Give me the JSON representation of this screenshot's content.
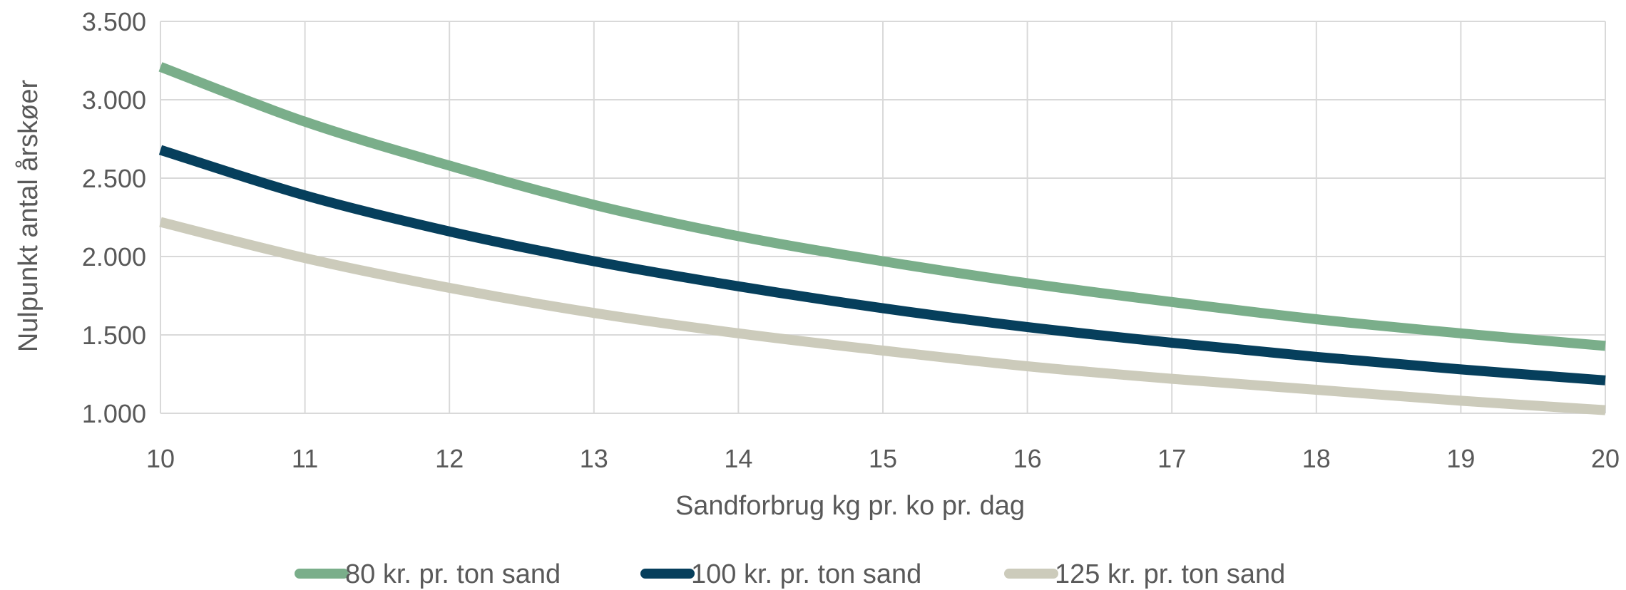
{
  "chart_data": {
    "type": "line",
    "title": "",
    "xlabel": "Sandforbrug kg pr. ko pr. dag",
    "ylabel": "Nulpunkt antal årskøer",
    "xlim": [
      10,
      20
    ],
    "ylim": [
      1000,
      3500
    ],
    "x_ticks": [
      "10",
      "11",
      "12",
      "13",
      "14",
      "15",
      "16",
      "17",
      "18",
      "19",
      "20"
    ],
    "y_ticks": [
      "1.000",
      "1.500",
      "2.000",
      "2.500",
      "3.000",
      "3.500"
    ],
    "grid": true,
    "legend_position": "bottom",
    "x": [
      10,
      11,
      12,
      13,
      14,
      15,
      16,
      17,
      18,
      19,
      20
    ],
    "series": [
      {
        "name": "80 kr. pr. ton sand",
        "color": "#7aae8a",
        "values": [
          3210,
          2860,
          2580,
          2330,
          2130,
          1970,
          1830,
          1710,
          1600,
          1510,
          1430
        ]
      },
      {
        "name": "100 kr. pr. ton sand",
        "color": "#063f5c",
        "values": [
          2680,
          2390,
          2160,
          1970,
          1810,
          1670,
          1550,
          1450,
          1360,
          1280,
          1210
        ]
      },
      {
        "name": "125 kr. pr. ton sand",
        "color": "#cccbbb",
        "values": [
          2220,
          1990,
          1800,
          1640,
          1510,
          1400,
          1300,
          1220,
          1150,
          1080,
          1020
        ]
      }
    ]
  }
}
